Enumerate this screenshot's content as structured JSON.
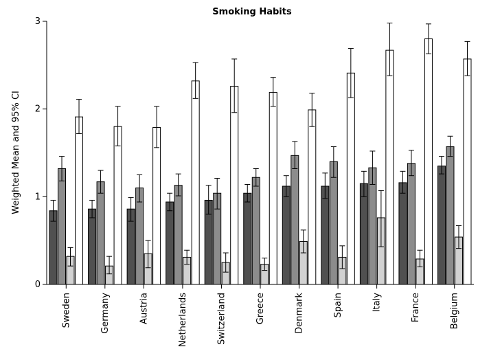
{
  "chart_data": {
    "type": "bar",
    "title": "Smoking Habits",
    "xlabel": "",
    "ylabel": "Weighted Mean and 95% CI",
    "ylim": [
      0,
      3
    ],
    "yticks": [
      "0",
      "1",
      "2",
      "3"
    ],
    "grid": false,
    "categories": [
      "Sweden",
      "Germany",
      "Austria",
      "Netherlands",
      "Switzerland",
      "Greece",
      "Denmark",
      "Spain",
      "Italy",
      "France",
      "Belgium"
    ],
    "series": [
      {
        "color": "#505050",
        "values": [
          0.84,
          0.86,
          0.86,
          0.94,
          0.96,
          1.04,
          1.12,
          1.12,
          1.15,
          1.16,
          1.35
        ],
        "ci_low": [
          0.72,
          0.76,
          0.72,
          0.84,
          0.8,
          0.94,
          1.0,
          0.98,
          1.0,
          1.04,
          1.26
        ],
        "ci_high": [
          0.96,
          0.96,
          0.99,
          1.04,
          1.13,
          1.14,
          1.24,
          1.27,
          1.29,
          1.29,
          1.46
        ]
      },
      {
        "color": "#8c8c8c",
        "values": [
          1.32,
          1.17,
          1.1,
          1.13,
          1.04,
          1.22,
          1.47,
          1.4,
          1.33,
          1.38,
          1.57
        ],
        "ci_low": [
          1.18,
          1.04,
          0.94,
          1.01,
          0.86,
          1.12,
          1.32,
          1.22,
          1.14,
          1.24,
          1.46
        ],
        "ci_high": [
          1.46,
          1.3,
          1.25,
          1.26,
          1.21,
          1.32,
          1.63,
          1.57,
          1.52,
          1.53,
          1.69
        ]
      },
      {
        "color": "#d2d2d2",
        "values": [
          0.32,
          0.21,
          0.35,
          0.31,
          0.25,
          0.23,
          0.49,
          0.31,
          0.76,
          0.29,
          0.54
        ],
        "ci_low": [
          0.21,
          0.12,
          0.19,
          0.23,
          0.14,
          0.16,
          0.36,
          0.18,
          0.43,
          0.2,
          0.41
        ],
        "ci_high": [
          0.42,
          0.32,
          0.5,
          0.39,
          0.36,
          0.3,
          0.62,
          0.44,
          1.07,
          0.39,
          0.67
        ]
      },
      {
        "color": "#ffffff",
        "values": [
          1.91,
          1.8,
          1.79,
          2.32,
          2.26,
          2.19,
          1.99,
          2.41,
          2.67,
          2.8,
          2.57
        ],
        "ci_low": [
          1.72,
          1.58,
          1.56,
          2.12,
          1.96,
          2.03,
          1.8,
          2.13,
          2.38,
          2.63,
          2.38
        ],
        "ci_high": [
          2.11,
          2.03,
          2.03,
          2.53,
          2.57,
          2.36,
          2.18,
          2.69,
          2.98,
          2.97,
          2.77
        ]
      }
    ]
  }
}
